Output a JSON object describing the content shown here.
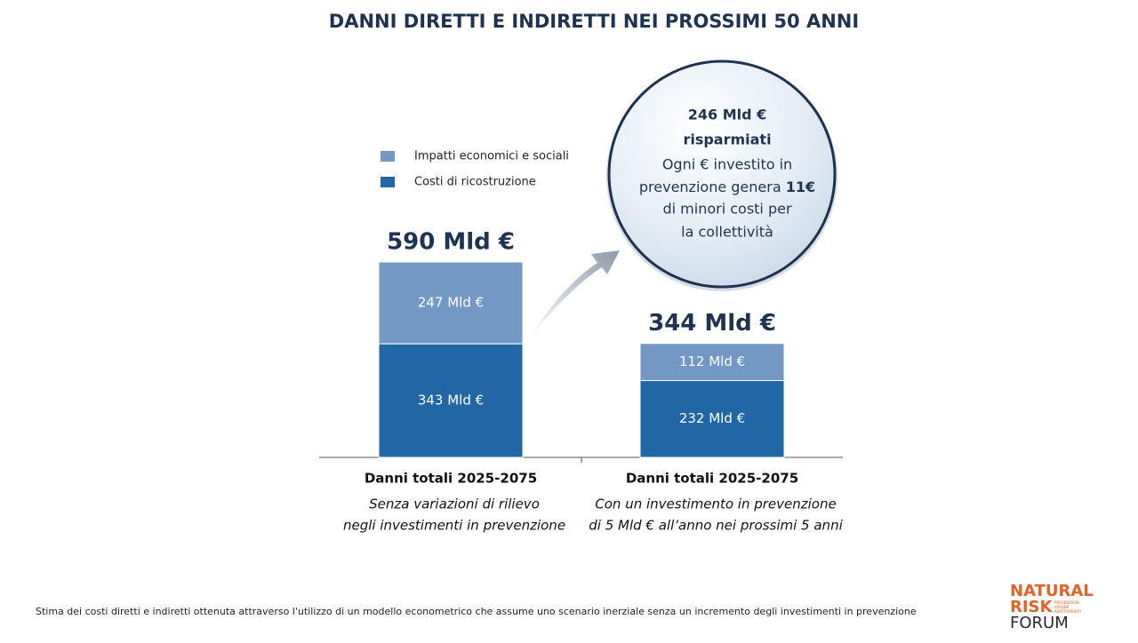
{
  "chart_data": {
    "type": "stacked_bar",
    "title": "DANNI DIRETTI E INDIRETTI NEI PROSSIMI 50 ANNI",
    "categories": [
      "Danni totali 2025-2075",
      "Danni totali 2025-2075"
    ],
    "category_notes": [
      [
        "Senza variazioni di rilievo",
        "negli investimenti in prevenzione"
      ],
      [
        "Con un investimento in prevenzione",
        "di 5 Mld € all’anno nei prossimi 5 anni"
      ]
    ],
    "series": [
      {
        "name": "Costi di ricostruzione",
        "color": "#2166a5",
        "values": [
          343,
          232
        ],
        "value_labels": [
          "343 Mld €",
          "232 Mld €"
        ]
      },
      {
        "name": "Impatti economici e sociali",
        "color": "#7398c4",
        "values": [
          247,
          112
        ],
        "value_labels": [
          "247 Mld €",
          "112 Mld €"
        ]
      }
    ],
    "totals": {
      "values": [
        590,
        344
      ],
      "value_labels": [
        "590 Mld €",
        "344 Mld €"
      ]
    },
    "callout": {
      "headline": [
        "246 Mld €",
        "risparmiati"
      ],
      "body": [
        "Ogni € investito in",
        "prevenzione genera",
        "11€",
        "di minori costi per",
        "la collettività"
      ]
    },
    "footnote": "Stima dei costi diretti e indiretti ottenuta attraverso l'utilizzo di un modello econometrico che assume uno scenario inerziale senza un incremento degli investimenti in prevenzione",
    "logo": {
      "lines": [
        "NATURAL",
        "RISK",
        "FORUM"
      ],
      "tagline": [
        "PREVENZIONE",
        "VISIONE",
        "ADATTAMENTO"
      ]
    }
  }
}
